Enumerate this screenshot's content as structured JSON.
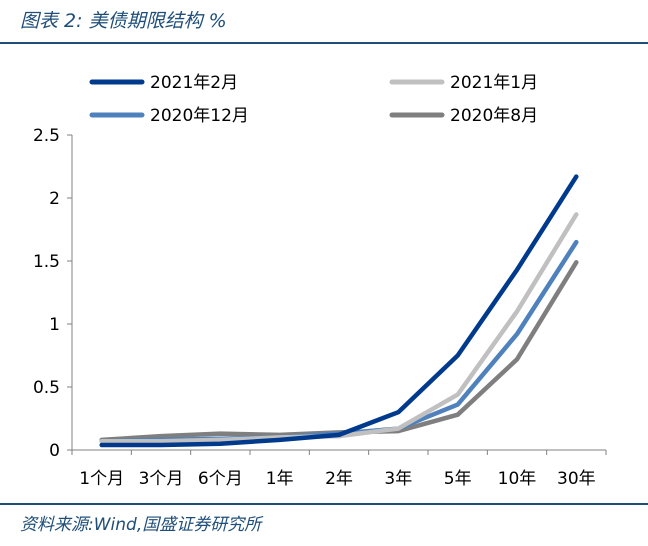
{
  "header": {
    "title": "图表 2:  美债期限结构  %"
  },
  "footer": {
    "source": "资料来源:Wind,国盛证券研究所"
  },
  "chart_data": {
    "type": "line",
    "title": "美债期限结构 %",
    "xlabel": "",
    "ylabel": "",
    "categories": [
      "1个月",
      "3个月",
      "6个月",
      "1年",
      "2年",
      "3年",
      "5年",
      "10年",
      "30年"
    ],
    "ylim": [
      0,
      2.5
    ],
    "yticks": [
      "0",
      "0.5",
      "1",
      "1.5",
      "2",
      "2.5"
    ],
    "grid": false,
    "legend_position": "top",
    "series": [
      {
        "name": "2021年2月",
        "color": "#003a8c",
        "values": [
          0.04,
          0.04,
          0.05,
          0.08,
          0.12,
          0.3,
          0.75,
          1.43,
          2.17
        ]
      },
      {
        "name": "2021年1月",
        "color": "#c0c0c0",
        "values": [
          0.07,
          0.07,
          0.08,
          0.1,
          0.11,
          0.17,
          0.44,
          1.1,
          1.87
        ]
      },
      {
        "name": "2020年12月",
        "color": "#4f81bd",
        "values": [
          0.07,
          0.08,
          0.09,
          0.1,
          0.13,
          0.17,
          0.36,
          0.92,
          1.65
        ]
      },
      {
        "name": "2020年8月",
        "color": "#7f7f7f",
        "values": [
          0.08,
          0.11,
          0.13,
          0.12,
          0.14,
          0.15,
          0.28,
          0.72,
          1.49
        ]
      }
    ]
  }
}
